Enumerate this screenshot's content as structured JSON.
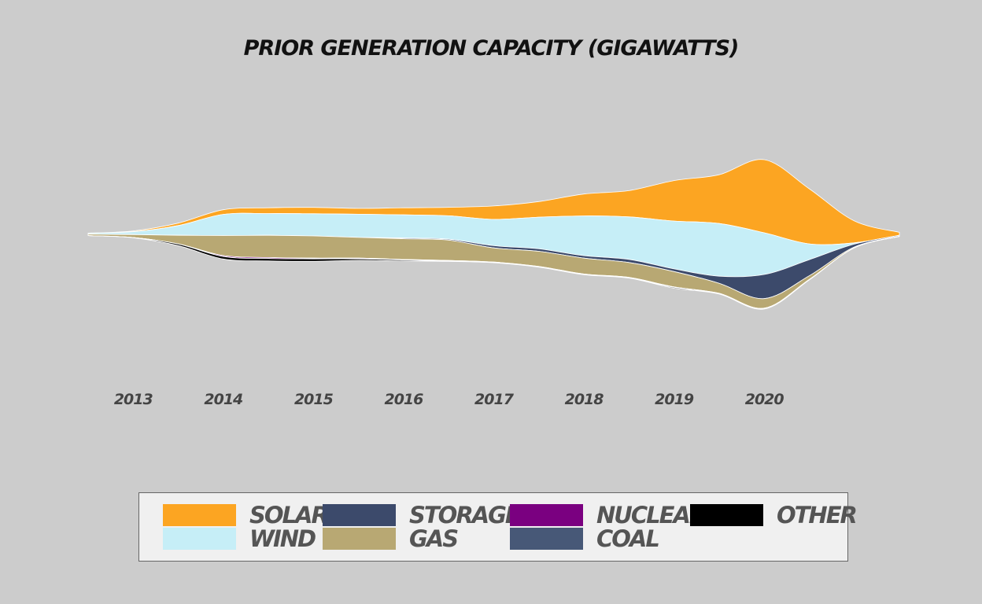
{
  "chart_data": {
    "type": "area",
    "subtype": "streamgraph",
    "title": "Prior Generation Capacity (Gigawatts)",
    "xlabel": "",
    "ylabel": "",
    "x_ticks": [
      "2013",
      "2014",
      "2015",
      "2016",
      "2017",
      "2018",
      "2019",
      "2020"
    ],
    "x": [
      2012.5,
      2013.0,
      2013.5,
      2014.0,
      2014.5,
      2015.0,
      2015.5,
      2016.0,
      2016.5,
      2017.0,
      2017.5,
      2018.0,
      2018.5,
      2019.0,
      2019.5,
      2020.0,
      2020.5,
      2021.0,
      2021.5
    ],
    "xlim": [
      2012.5,
      2021.5
    ],
    "grid": false,
    "legend_position": "bottom",
    "series": [
      {
        "name": "Solar",
        "color": "#fca522",
        "values": [
          0.0,
          0.3,
          1.0,
          1.9,
          2.4,
          2.6,
          2.4,
          2.9,
          3.5,
          5.5,
          6.4,
          9.0,
          10.8,
          16.6,
          20.0,
          30.0,
          22.6,
          9.0,
          1.2
        ]
      },
      {
        "name": "Wind",
        "color": "#c6eef7",
        "values": [
          0.4,
          1.2,
          4.0,
          8.7,
          8.9,
          9.1,
          9.5,
          9.5,
          9.6,
          10.8,
          13.0,
          16.3,
          17.4,
          19.6,
          21.6,
          17.1,
          6.5,
          0.5,
          0.1
        ]
      },
      {
        "name": "Storage",
        "color": "#3c4a6b",
        "values": [
          0.0,
          0.0,
          0.0,
          0.0,
          0.0,
          0.0,
          0.0,
          0.3,
          0.4,
          0.9,
          1.0,
          1.0,
          1.3,
          1.1,
          2.9,
          9.9,
          6.6,
          1.2,
          0.3
        ]
      },
      {
        "name": "Gas",
        "color": "#b8a873",
        "values": [
          0.6,
          1.2,
          3.5,
          8.2,
          9.1,
          9.1,
          8.5,
          8.5,
          8.3,
          5.8,
          6.2,
          6.5,
          6.1,
          6.3,
          4.1,
          3.9,
          1.5,
          0.3,
          0.1
        ]
      },
      {
        "name": "Nuclear",
        "color": "#7a0080",
        "values": [
          0.0,
          0.0,
          0.1,
          0.4,
          0.4,
          0.3,
          0.3,
          0.2,
          0.2,
          0.1,
          0.1,
          0.1,
          0.1,
          0.2,
          0.1,
          0.2,
          0.1,
          0.0,
          0.0
        ]
      },
      {
        "name": "Coal",
        "color": "#475877",
        "values": [
          0.0,
          0.0,
          0.0,
          0.0,
          0.0,
          0.0,
          0.0,
          0.0,
          0.0,
          0.0,
          0.0,
          0.0,
          0.0,
          0.0,
          0.0,
          0.0,
          0.0,
          0.0,
          0.0
        ]
      },
      {
        "name": "Other",
        "color": "#000000",
        "values": [
          0.0,
          0.1,
          0.6,
          1.0,
          1.0,
          1.0,
          0.6,
          0.4,
          0.2,
          0.2,
          0.2,
          0.2,
          0.2,
          0.3,
          0.2,
          0.2,
          0.1,
          0.0,
          0.0
        ]
      }
    ]
  }
}
